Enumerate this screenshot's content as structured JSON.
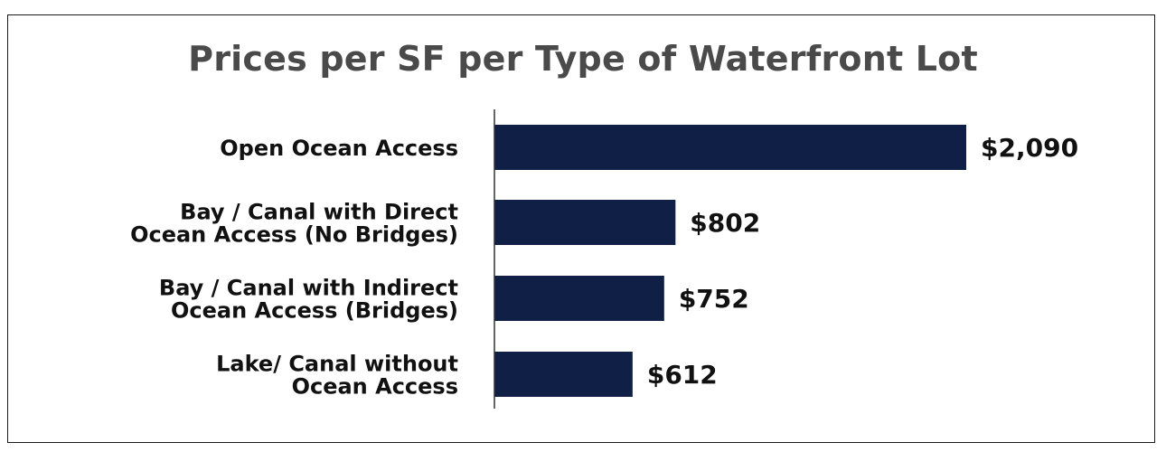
{
  "chart_data": {
    "type": "bar",
    "orientation": "horizontal",
    "title": "Prices per SF per Type of Waterfront Lot",
    "categories": [
      [
        "Open Ocean Access"
      ],
      [
        "Bay / Canal with Direct",
        "Ocean Access (No Bridges)"
      ],
      [
        "Bay / Canal with Indirect",
        "Ocean Access (Bridges)"
      ],
      [
        "Lake/ Canal without",
        "Ocean Access"
      ]
    ],
    "values": [
      2090,
      802,
      752,
      612
    ],
    "value_labels": [
      "$2,090",
      "$802",
      "$752",
      "$612"
    ],
    "xlim": [
      0,
      2090
    ],
    "xlabel": "",
    "ylabel": "",
    "grid": false,
    "legend": "none",
    "bar_color": "#0f1f45",
    "axis_color": "#333333"
  }
}
